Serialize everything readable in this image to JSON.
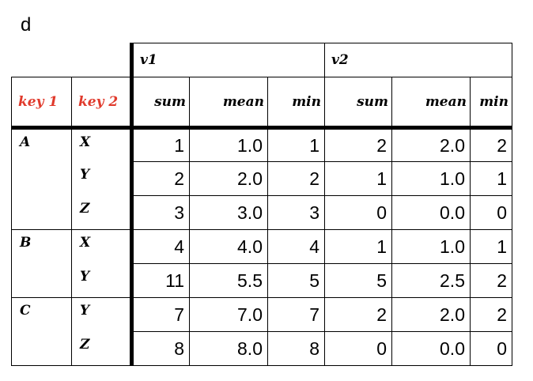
{
  "panel_label": "d",
  "table": {
    "groups": [
      "v1",
      "v2"
    ],
    "index_headers": [
      "key 1",
      "key 2"
    ],
    "subcolumns": [
      "sum",
      "mean",
      "min"
    ],
    "colors": {
      "index_header": "#e03a2c",
      "border": "#000000"
    },
    "rows": [
      {
        "key1": "A",
        "key2": "X",
        "v1": [
          "1",
          "1.0",
          "1"
        ],
        "v2": [
          "2",
          "2.0",
          "2"
        ]
      },
      {
        "key1": "",
        "key2": "Y",
        "v1": [
          "2",
          "2.0",
          "2"
        ],
        "v2": [
          "1",
          "1.0",
          "1"
        ]
      },
      {
        "key1": "",
        "key2": "Z",
        "v1": [
          "3",
          "3.0",
          "3"
        ],
        "v2": [
          "0",
          "0.0",
          "0"
        ]
      },
      {
        "key1": "B",
        "key2": "X",
        "v1": [
          "4",
          "4.0",
          "4"
        ],
        "v2": [
          "1",
          "1.0",
          "1"
        ]
      },
      {
        "key1": "",
        "key2": "Y",
        "v1": [
          "11",
          "5.5",
          "5"
        ],
        "v2": [
          "5",
          "2.5",
          "2"
        ]
      },
      {
        "key1": "C",
        "key2": "Y",
        "v1": [
          "7",
          "7.0",
          "7"
        ],
        "v2": [
          "2",
          "2.0",
          "2"
        ]
      },
      {
        "key1": "",
        "key2": "Z",
        "v1": [
          "8",
          "8.0",
          "8"
        ],
        "v2": [
          "0",
          "0.0",
          "0"
        ]
      }
    ]
  }
}
